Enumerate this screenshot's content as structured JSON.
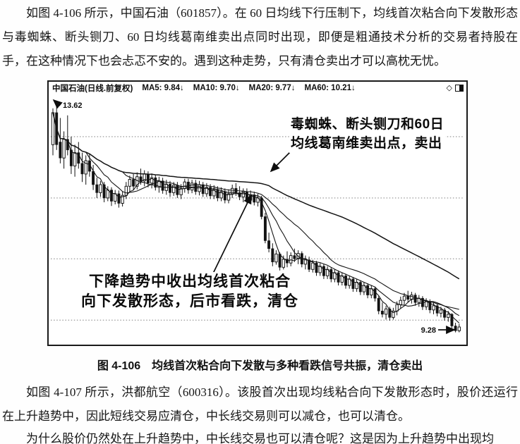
{
  "page": {
    "paragraph_1": "如图 4-106 所示，中国石油（601857）。在 60 日均线下行压制下，均线首次粘合向下发散形态与毒蜘蛛、断头铡刀、60 日均线葛南维卖出点同时出现，即便是粗通技术分析的交易者持股在手，在这种情况下也会忐忑不安的。遇到这种走势，只有清仓卖出才可以高枕无忧。",
    "paragraph_2": "如图 4-107 所示，洪都航空（600316）。该股首次出现均线粘合向下发散形态时，股价还运行在上升趋势中，因此短线交易应清仓，中长线交易则可以减仓，也可以清仓。",
    "paragraph_3": "为什么股价仍然处在上升趋势中，中长线交易也可以清仓呢？这是因为上升趋势中出现均",
    "figure_caption": "图 4-106　均线首次粘合向下发散与多种看跌信号共振，清仓卖出"
  },
  "colors": {
    "ink": "#121212",
    "paper": "#ffffff"
  },
  "chart": {
    "title": "中国石油(日线.前复权)",
    "ma_labels": [
      "MA5: 9.84↓",
      "MA10: 9.70↓",
      "MA20: 9.77↓",
      "MA60: 10.21↓"
    ],
    "icons": [
      "diamond-icon",
      "split-window-icon"
    ],
    "annotations": {
      "high_label": "13.62",
      "low_label": "9.28",
      "sell_note_line1": "毒蜘蛛、断头铡刀和60日",
      "sell_note_line2": "均线葛南维卖出点，卖出",
      "trend_note_line1": "下降趋势中收出均线首次粘合",
      "trend_note_line2": "向下发散形态，后市看跌，清仓"
    },
    "chart_data": {
      "type": "candlestick",
      "symbol": "中国石油",
      "code": "601857",
      "period": "日线.前复权",
      "high": 13.62,
      "low": 9.28,
      "ylim": [
        9.05,
        13.98
      ],
      "gridline_prices": [
        12.95,
        11.8,
        10.66,
        9.51
      ],
      "ma_periods": [
        5,
        10,
        20,
        60
      ],
      "ma_values": {
        "MA5": 9.84,
        "MA10": 9.7,
        "MA20": 9.77,
        "MA60": 10.21
      },
      "legend_position": "top-left",
      "grid": "dashed-horizontal",
      "candles": [
        [
          12.8,
          13.48,
          12.6,
          13.4
        ],
        [
          13.4,
          13.62,
          12.7,
          12.8
        ],
        [
          12.85,
          13.3,
          12.45,
          12.55
        ],
        [
          12.55,
          13.05,
          12.35,
          12.9
        ],
        [
          12.9,
          13.35,
          12.6,
          12.7
        ],
        [
          12.7,
          12.95,
          12.25,
          12.4
        ],
        [
          12.4,
          12.8,
          12.2,
          12.65
        ],
        [
          12.65,
          12.85,
          12.35,
          12.45
        ],
        [
          12.45,
          12.65,
          12.1,
          12.25
        ],
        [
          12.25,
          12.6,
          12.05,
          12.5
        ],
        [
          12.5,
          12.62,
          12.2,
          12.3
        ],
        [
          12.3,
          12.42,
          11.95,
          12.05
        ],
        [
          12.05,
          12.18,
          11.8,
          11.9
        ],
        [
          11.9,
          12.12,
          11.82,
          12.05
        ],
        [
          12.05,
          12.1,
          11.72,
          11.8
        ],
        [
          11.8,
          12.02,
          11.74,
          11.95
        ],
        [
          11.95,
          12.0,
          11.65,
          11.74
        ],
        [
          11.74,
          11.95,
          11.68,
          11.88
        ],
        [
          11.88,
          11.94,
          11.62,
          11.7
        ],
        [
          11.7,
          11.92,
          11.64,
          11.85
        ],
        [
          11.85,
          12.1,
          11.78,
          12.02
        ],
        [
          12.02,
          12.22,
          11.92,
          12.15
        ],
        [
          12.15,
          12.25,
          11.95,
          12.02
        ],
        [
          12.02,
          12.28,
          11.96,
          12.2
        ],
        [
          12.2,
          12.35,
          12.05,
          12.12
        ],
        [
          12.12,
          12.32,
          12.02,
          12.25
        ],
        [
          12.25,
          12.3,
          12.0,
          12.08
        ],
        [
          12.08,
          12.26,
          11.98,
          12.18
        ],
        [
          12.18,
          12.24,
          11.94,
          12.0
        ],
        [
          12.0,
          12.2,
          11.9,
          12.12
        ],
        [
          12.12,
          12.18,
          11.88,
          11.94
        ],
        [
          11.94,
          12.14,
          11.86,
          12.06
        ],
        [
          12.06,
          12.12,
          11.82,
          11.9
        ],
        [
          11.9,
          12.1,
          11.84,
          12.04
        ],
        [
          12.04,
          12.1,
          11.8,
          11.86
        ],
        [
          11.86,
          12.06,
          11.78,
          11.98
        ],
        [
          11.98,
          12.16,
          11.9,
          12.1
        ],
        [
          12.1,
          12.16,
          11.88,
          11.95
        ],
        [
          11.95,
          12.14,
          11.89,
          12.08
        ],
        [
          12.08,
          12.14,
          11.86,
          11.92
        ],
        [
          11.92,
          12.12,
          11.85,
          12.05
        ],
        [
          12.05,
          12.1,
          11.82,
          11.88
        ],
        [
          11.88,
          12.08,
          11.82,
          12.0
        ],
        [
          12.0,
          12.06,
          11.78,
          11.84
        ],
        [
          11.84,
          12.04,
          11.78,
          11.96
        ],
        [
          11.96,
          12.02,
          11.74,
          11.8
        ],
        [
          11.8,
          12.0,
          11.74,
          11.92
        ],
        [
          11.92,
          11.98,
          11.7,
          11.76
        ],
        [
          11.76,
          11.96,
          11.7,
          11.88
        ],
        [
          11.88,
          12.05,
          11.8,
          11.98
        ],
        [
          11.98,
          12.08,
          11.84,
          11.9
        ],
        [
          11.9,
          12.02,
          11.76,
          11.82
        ],
        [
          11.82,
          11.98,
          11.72,
          11.92
        ],
        [
          11.92,
          11.98,
          11.7,
          11.76
        ],
        [
          11.76,
          11.94,
          11.7,
          11.86
        ],
        [
          11.86,
          11.92,
          11.66,
          11.72
        ],
        [
          11.72,
          11.88,
          11.64,
          11.8
        ],
        [
          11.8,
          11.84,
          11.4,
          11.45
        ],
        [
          11.45,
          11.52,
          10.95,
          11.0
        ],
        [
          11.0,
          11.15,
          10.78,
          10.85
        ],
        [
          10.85,
          10.95,
          10.52,
          10.6
        ],
        [
          10.6,
          10.82,
          10.55,
          10.75
        ],
        [
          10.75,
          10.78,
          10.44,
          10.5
        ],
        [
          10.5,
          10.72,
          10.46,
          10.65
        ],
        [
          10.65,
          10.8,
          10.5,
          10.58
        ],
        [
          10.58,
          10.78,
          10.52,
          10.72
        ],
        [
          10.72,
          10.85,
          10.6,
          10.66
        ],
        [
          10.66,
          10.82,
          10.56,
          10.76
        ],
        [
          10.76,
          10.8,
          10.5,
          10.56
        ],
        [
          10.56,
          10.72,
          10.46,
          10.64
        ],
        [
          10.64,
          10.7,
          10.4,
          10.46
        ],
        [
          10.46,
          10.64,
          10.4,
          10.58
        ],
        [
          10.58,
          10.62,
          10.34,
          10.4
        ],
        [
          10.4,
          10.58,
          10.34,
          10.52
        ],
        [
          10.52,
          10.56,
          10.28,
          10.34
        ],
        [
          10.34,
          10.52,
          10.28,
          10.46
        ],
        [
          10.46,
          10.5,
          10.22,
          10.28
        ],
        [
          10.28,
          10.46,
          10.22,
          10.4
        ],
        [
          10.4,
          10.44,
          10.16,
          10.22
        ],
        [
          10.22,
          10.4,
          10.16,
          10.34
        ],
        [
          10.34,
          10.38,
          10.1,
          10.16
        ],
        [
          10.16,
          10.34,
          10.1,
          10.28
        ],
        [
          10.28,
          10.32,
          10.04,
          10.1
        ],
        [
          10.1,
          10.28,
          10.04,
          10.22
        ],
        [
          10.22,
          10.26,
          9.98,
          10.04
        ],
        [
          10.04,
          10.22,
          9.98,
          10.16
        ],
        [
          10.16,
          10.2,
          9.92,
          9.98
        ],
        [
          9.98,
          10.16,
          9.92,
          10.1
        ],
        [
          10.1,
          10.14,
          9.86,
          9.92
        ],
        [
          9.92,
          9.96,
          9.62,
          9.68
        ],
        [
          9.68,
          9.84,
          9.56,
          9.62
        ],
        [
          9.62,
          9.78,
          9.52,
          9.72
        ],
        [
          9.72,
          9.76,
          9.5,
          9.56
        ],
        [
          9.56,
          9.74,
          9.52,
          9.68
        ],
        [
          9.68,
          9.86,
          9.6,
          9.8
        ],
        [
          9.8,
          9.95,
          9.72,
          9.88
        ],
        [
          9.88,
          10.02,
          9.8,
          9.96
        ],
        [
          9.96,
          10.06,
          9.84,
          9.9
        ],
        [
          9.9,
          10.04,
          9.82,
          9.98
        ],
        [
          9.98,
          10.02,
          9.78,
          9.84
        ],
        [
          9.84,
          9.98,
          9.76,
          9.92
        ],
        [
          9.92,
          9.96,
          9.7,
          9.76
        ],
        [
          9.76,
          9.92,
          9.7,
          9.86
        ],
        [
          9.86,
          9.9,
          9.64,
          9.7
        ],
        [
          9.7,
          9.84,
          9.62,
          9.78
        ],
        [
          9.78,
          9.82,
          9.58,
          9.64
        ],
        [
          9.64,
          9.76,
          9.56,
          9.7
        ],
        [
          9.7,
          9.74,
          9.5,
          9.56
        ],
        [
          9.56,
          9.68,
          9.48,
          9.62
        ],
        [
          9.62,
          9.64,
          9.36,
          9.4
        ],
        [
          9.4,
          9.46,
          9.28,
          9.31
        ],
        [
          9.31,
          9.44,
          9.28,
          9.38
        ]
      ]
    }
  }
}
